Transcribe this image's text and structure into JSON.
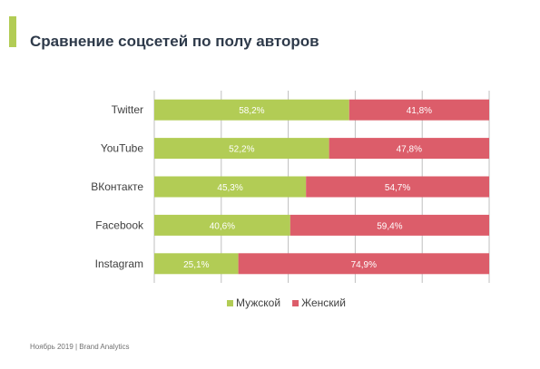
{
  "title": "Сравнение соцсетей по полу авторов",
  "footer": "Ноябрь 2019 | Brand Analytics",
  "colors": {
    "male": "#b2cc55",
    "female": "#dc5d6a",
    "accent": "#b2cc55",
    "grid": "#bfbfbf"
  },
  "chart_data": {
    "type": "bar",
    "orientation": "horizontal",
    "stacked": true,
    "categories": [
      "Twitter",
      "YouTube",
      "ВКонтакте",
      "Facebook",
      "Instagram"
    ],
    "series": [
      {
        "name": "Мужской",
        "values": [
          58.2,
          52.2,
          45.3,
          40.6,
          25.1
        ],
        "labels": [
          "58,2%",
          "52,2%",
          "45,3%",
          "40,6%",
          "25,1%"
        ]
      },
      {
        "name": "Женский",
        "values": [
          41.8,
          47.8,
          54.7,
          59.4,
          74.9
        ],
        "labels": [
          "41,8%",
          "47,8%",
          "54,7%",
          "59,4%",
          "74,9%"
        ]
      }
    ],
    "xlim": [
      0,
      100
    ],
    "grid": true,
    "legend_position": "bottom"
  }
}
